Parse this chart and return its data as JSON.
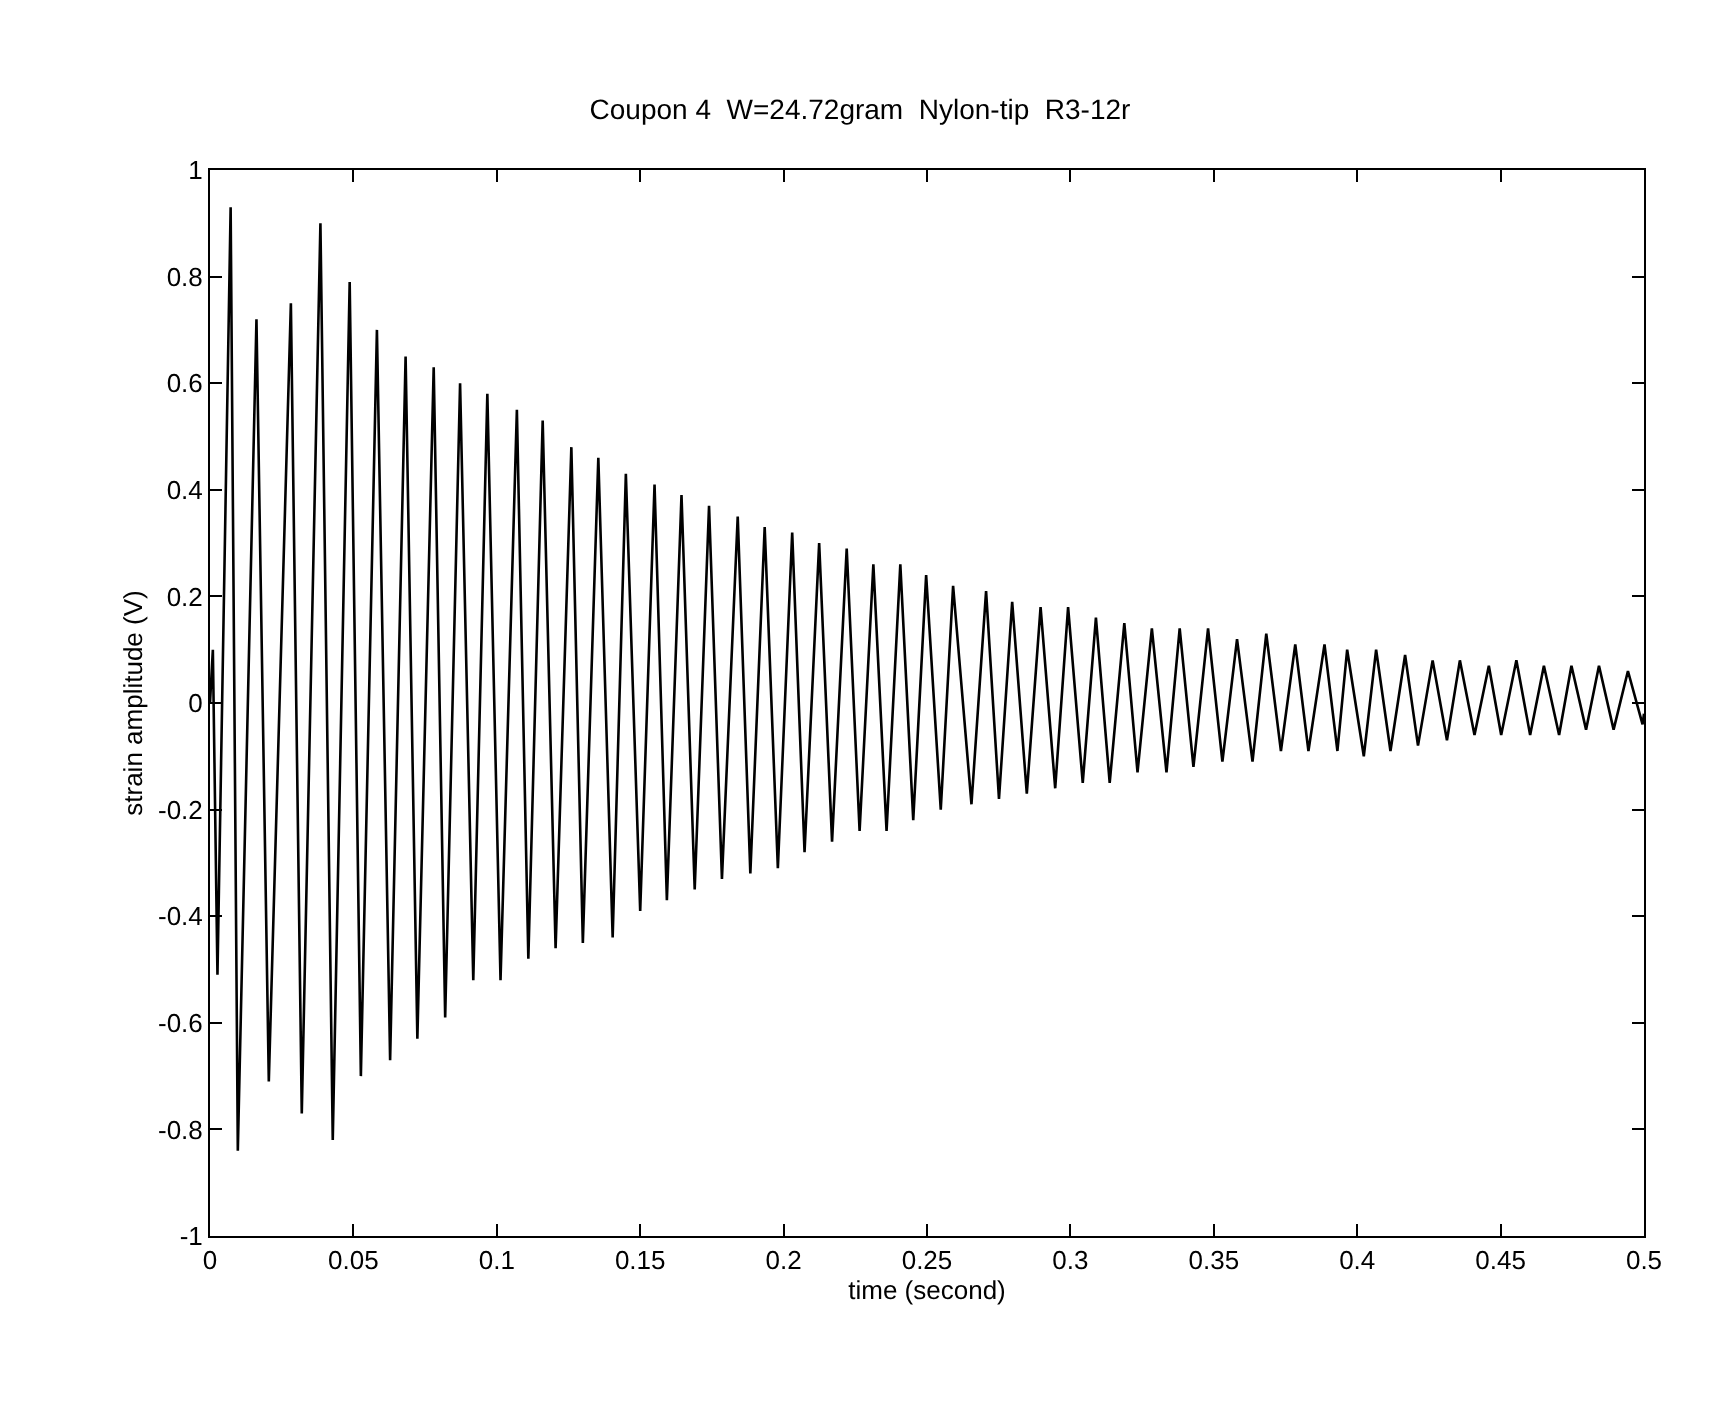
{
  "chart_data": {
    "type": "line",
    "title": "Coupon 4  W=24.72gram  Nylon-tip  R3-12r",
    "xlabel": "time (second)",
    "ylabel": "strain amplitude (V)",
    "x": [
      0,
      0.001,
      0.0026,
      0.0072,
      0.0097,
      0.0162,
      0.0205,
      0.0282,
      0.032,
      0.0385,
      0.0428,
      0.0487,
      0.0526,
      0.0582,
      0.0628,
      0.0682,
      0.0723,
      0.078,
      0.082,
      0.0872,
      0.0918,
      0.0967,
      0.1013,
      0.107,
      0.111,
      0.116,
      0.1205,
      0.126,
      0.13,
      0.1354,
      0.1404,
      0.145,
      0.15,
      0.155,
      0.1593,
      0.1644,
      0.169,
      0.174,
      0.1785,
      0.184,
      0.1884,
      0.1934,
      0.198,
      0.203,
      0.2073,
      0.2124,
      0.2169,
      0.222,
      0.2265,
      0.2313,
      0.2359,
      0.2407,
      0.2452,
      0.2497,
      0.2548,
      0.2591,
      0.2655,
      0.2706,
      0.2751,
      0.2797,
      0.2848,
      0.2896,
      0.2947,
      0.2992,
      0.3043,
      0.3089,
      0.3137,
      0.3188,
      0.3234,
      0.3284,
      0.3335,
      0.3381,
      0.3429,
      0.348,
      0.353,
      0.3581,
      0.3635,
      0.3683,
      0.3734,
      0.3784,
      0.383,
      0.3886,
      0.3931,
      0.3965,
      0.4023,
      0.4066,
      0.4116,
      0.4167,
      0.4212,
      0.4263,
      0.4313,
      0.4358,
      0.4409,
      0.4459,
      0.4502,
      0.4555,
      0.4603,
      0.4651,
      0.4704,
      0.4747,
      0.4798,
      0.4843,
      0.4894,
      0.4944,
      0.4995,
      0.5
    ],
    "series": [
      {
        "color": "#000000",
        "values": [
          0,
          0.1,
          -0.51,
          0.93,
          -0.84,
          0.72,
          -0.71,
          0.75,
          -0.77,
          0.9,
          -0.82,
          0.79,
          -0.7,
          0.7,
          -0.67,
          0.65,
          -0.63,
          0.63,
          -0.59,
          0.6,
          -0.52,
          0.58,
          -0.52,
          0.55,
          -0.48,
          0.53,
          -0.46,
          0.48,
          -0.45,
          0.46,
          -0.44,
          0.43,
          -0.39,
          0.41,
          -0.37,
          0.39,
          -0.35,
          0.37,
          -0.33,
          0.35,
          -0.32,
          0.33,
          -0.31,
          0.32,
          -0.28,
          0.3,
          -0.26,
          0.29,
          -0.24,
          0.26,
          -0.24,
          0.26,
          -0.22,
          0.24,
          -0.2,
          0.22,
          -0.19,
          0.21,
          -0.18,
          0.19,
          -0.17,
          0.18,
          -0.16,
          0.18,
          -0.15,
          0.16,
          -0.15,
          0.15,
          -0.13,
          0.14,
          -0.13,
          0.14,
          -0.12,
          0.14,
          -0.11,
          0.12,
          -0.11,
          0.13,
          -0.09,
          0.11,
          -0.09,
          0.11,
          -0.09,
          0.1,
          -0.1,
          0.1,
          -0.09,
          0.09,
          -0.08,
          0.08,
          -0.07,
          0.08,
          -0.06,
          0.07,
          -0.06,
          0.08,
          -0.06,
          0.07,
          -0.06,
          0.07,
          -0.05,
          0.07,
          -0.05,
          0.06,
          -0.04,
          -0.02
        ]
      }
    ],
    "xlim": [
      0,
      0.5
    ],
    "xticks": [
      0,
      0.05,
      0.1,
      0.15,
      0.2,
      0.25,
      0.3,
      0.35,
      0.4,
      0.45,
      0.5
    ],
    "ylim": [
      -1,
      1
    ],
    "yticks": [
      -1,
      -0.8,
      -0.6,
      -0.4,
      -0.2,
      0,
      0.2,
      0.4,
      0.6,
      0.8,
      1
    ],
    "grid": false,
    "marker": "none",
    "line_style": "solid"
  }
}
